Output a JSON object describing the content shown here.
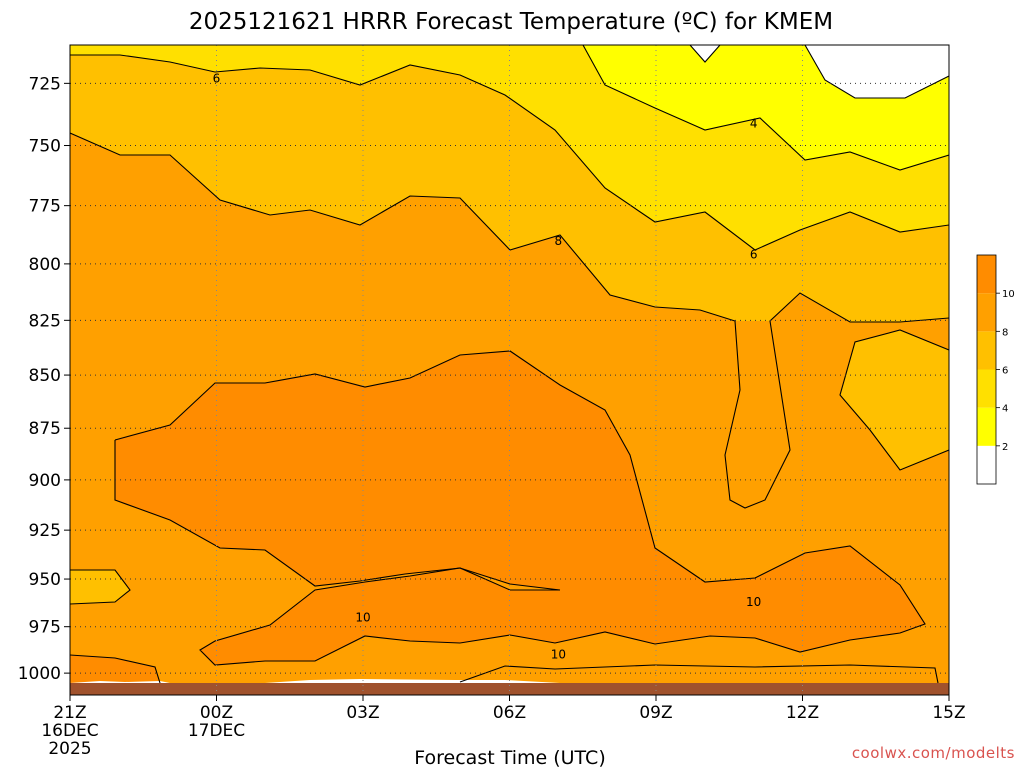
{
  "chart_data": {
    "type": "filled-contour",
    "title": "2025121621 HRRR Forecast Temperature (ºC) for KMEM",
    "xlabel": "Forecast Time (UTC)",
    "ylabel": "",
    "credit": "coolwx.com/modelts",
    "y_scale": "log",
    "y_inverted": true,
    "ylim": [
      1012,
      710
    ],
    "xlim": [
      0,
      18
    ],
    "x_ticks": [
      {
        "x": 0,
        "lines": [
          "21Z",
          "16DEC",
          "2025"
        ]
      },
      {
        "x": 3,
        "lines": [
          "00Z",
          "17DEC"
        ]
      },
      {
        "x": 6,
        "lines": [
          "03Z"
        ]
      },
      {
        "x": 9,
        "lines": [
          "06Z"
        ]
      },
      {
        "x": 12,
        "lines": [
          "09Z"
        ]
      },
      {
        "x": 15,
        "lines": [
          "12Z"
        ]
      },
      {
        "x": 18,
        "lines": [
          "15Z"
        ]
      }
    ],
    "y_ticks": [
      "725",
      "750",
      "775",
      "800",
      "825",
      "850",
      "875",
      "900",
      "925",
      "950",
      "975",
      "1000"
    ],
    "grid": true,
    "levels": [
      2,
      4,
      6,
      8,
      10
    ],
    "colorbar": {
      "placement": "right",
      "labels": [
        "2",
        "4",
        "6",
        "8",
        "10"
      ],
      "colors": [
        "#ffffff",
        "#ffff00",
        "#ffe000",
        "#ffc000",
        "#ffa000",
        "#ff8c00"
      ]
    },
    "contour_labels": [
      {
        "text": "6",
        "x": 3.0,
        "y": 723
      },
      {
        "text": "4",
        "x": 14.0,
        "y": 741
      },
      {
        "text": "6",
        "x": 14.0,
        "y": 796
      },
      {
        "text": "8",
        "x": 10.0,
        "y": 790
      },
      {
        "text": "10",
        "x": 6.0,
        "y": 970
      },
      {
        "text": "10",
        "x": 14.0,
        "y": 962
      },
      {
        "text": "10",
        "x": 10.0,
        "y": 990
      }
    ],
    "below_ground_color": "#a0522d"
  }
}
